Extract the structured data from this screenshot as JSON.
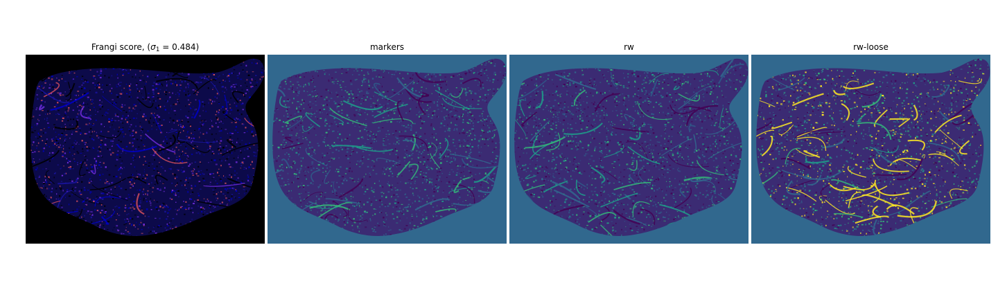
{
  "figure": {
    "panels": [
      {
        "title_prefix": "Frangi score, (",
        "title_symbol": "σ",
        "title_subscript": "1",
        "title_suffix": " = 0.484)",
        "colormap": "gnuplot2",
        "background_color": "#000000",
        "tissue_color": "#0c0a4a",
        "speckle_colors": [
          "#0000c8",
          "#1a14a0",
          "#6e2bd9",
          "#d04c5c",
          "#000000"
        ]
      },
      {
        "title": "markers",
        "colormap": "viridis",
        "background_color": "#31688e",
        "tissue_color": "#3b2b73",
        "speckle_colors": [
          "#440154",
          "#31688e",
          "#1f9e89",
          "#35b779",
          "#2f5b8a"
        ]
      },
      {
        "title": "rw",
        "colormap": "viridis",
        "background_color": "#31688e",
        "tissue_color": "#3b2b73",
        "speckle_colors": [
          "#440154",
          "#31688e",
          "#1f9e89",
          "#35b779",
          "#2f5b8a"
        ]
      },
      {
        "title": "rw-loose",
        "colormap": "viridis",
        "background_color": "#31688e",
        "tissue_color": "#3b2b73",
        "speckle_colors": [
          "#440154",
          "#31688e",
          "#35b779",
          "#fde725",
          "#1f9e89"
        ]
      }
    ]
  }
}
